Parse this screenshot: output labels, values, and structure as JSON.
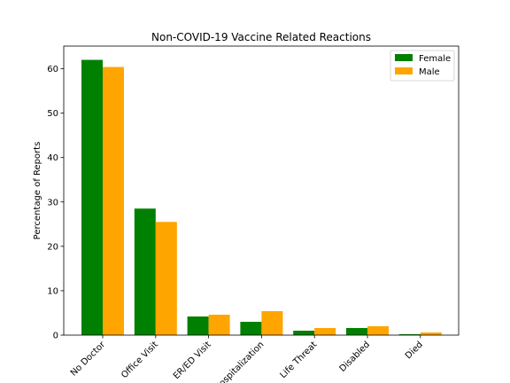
{
  "chart_data": {
    "type": "bar",
    "title": "Non-COVID-19 Vaccine Related Reactions",
    "xlabel": "",
    "ylabel": "Percentage of Reports",
    "categories": [
      "No Doctor",
      "Office Visit",
      "ER/ED Visit",
      "Hospitalization",
      "Life Threat",
      "Disabled",
      "Died"
    ],
    "series": [
      {
        "name": "Female",
        "color": "#008000",
        "values": [
          62.0,
          28.5,
          4.2,
          3.0,
          1.0,
          1.6,
          0.2
        ]
      },
      {
        "name": "Male",
        "color": "#ffa500",
        "values": [
          60.4,
          25.5,
          4.6,
          5.4,
          1.6,
          2.0,
          0.6
        ]
      }
    ],
    "ylim": [
      0,
      65.1
    ],
    "yticks": [
      0,
      10,
      20,
      30,
      40,
      50,
      60
    ],
    "legend": "top-right",
    "grid": false
  }
}
